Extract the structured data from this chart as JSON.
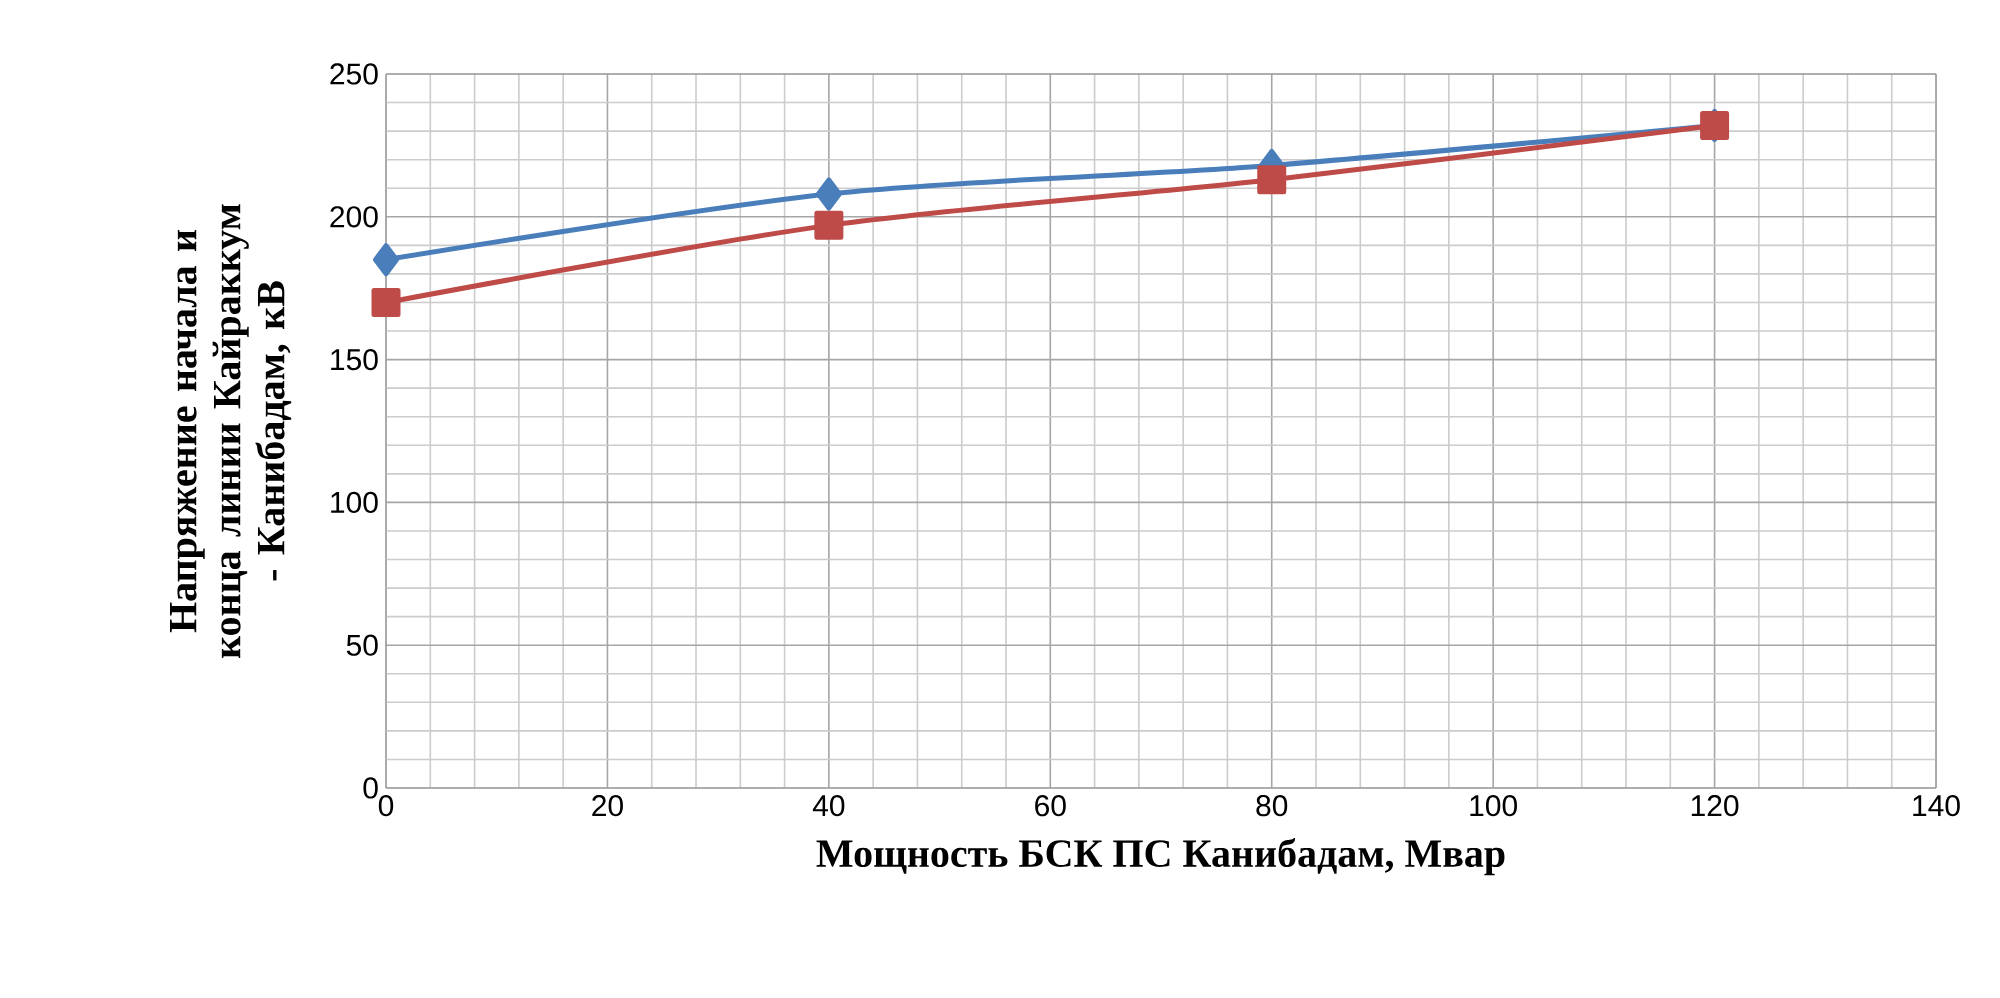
{
  "chart_data": {
    "type": "line",
    "xlabel": "Мощность БСК ПС Канибадам, Мвар",
    "ylabel": "Напряжение начала и конца линии Кайраккум - Канибадам, кВ",
    "x": [
      0,
      40,
      80,
      120
    ],
    "series": [
      {
        "color": "#4a7ebb",
        "marker": "diamond",
        "values": [
          185,
          208,
          218,
          232
        ]
      },
      {
        "color": "#be4b48",
        "marker": "square",
        "values": [
          170,
          197,
          213,
          232
        ]
      }
    ],
    "xlim": [
      0,
      140
    ],
    "xticks": [
      0,
      20,
      40,
      60,
      80,
      100,
      120,
      140
    ],
    "ylim": [
      0,
      250
    ],
    "yticks": [
      0,
      50,
      100,
      150,
      200,
      250
    ],
    "grid": true,
    "line_style": "solid"
  }
}
